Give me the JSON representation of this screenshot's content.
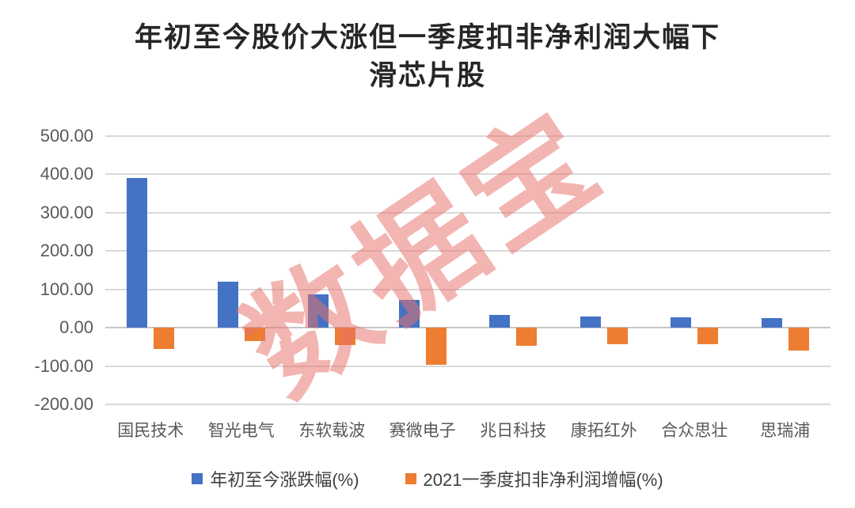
{
  "title": {
    "line1": "年初至今股价大涨但一季度扣非净利润大幅下",
    "line2": "滑芯片股"
  },
  "watermark": "数据宝",
  "chart_data": {
    "type": "bar",
    "title": "年初至今股价大涨但一季度扣非净利润大幅下滑芯片股",
    "categories": [
      "国民技术",
      "智光电气",
      "东软载波",
      "赛微电子",
      "兆日科技",
      "康拓红外",
      "合众思壮",
      "思瑞浦"
    ],
    "series": [
      {
        "name": "年初至今涨跌幅(%)",
        "color": "#4472C4",
        "values": [
          390,
          120,
          86,
          73,
          33,
          29,
          27,
          25
        ]
      },
      {
        "name": "2021一季度扣非净利润增幅(%)",
        "color": "#ED7D31",
        "values": [
          -56,
          -34,
          -45,
          -96,
          -48,
          -44,
          -43,
          -59
        ]
      }
    ],
    "xlabel": "",
    "ylabel": "",
    "ylim": [
      -200,
      500
    ],
    "yticks": [
      500,
      400,
      300,
      200,
      100,
      0,
      -100,
      -200
    ],
    "ytick_labels": [
      "500.00",
      "400.00",
      "300.00",
      "200.00",
      "100.00",
      "0.00",
      "-100.00",
      "-200.00"
    ],
    "grid": true,
    "legend_position": "bottom"
  },
  "colors": {
    "grid": "#D9D9D9",
    "axis_text": "#595959",
    "title_text": "#262626",
    "watermark": "#E8726C",
    "series_blue": "#4472C4",
    "series_orange": "#ED7D31"
  }
}
